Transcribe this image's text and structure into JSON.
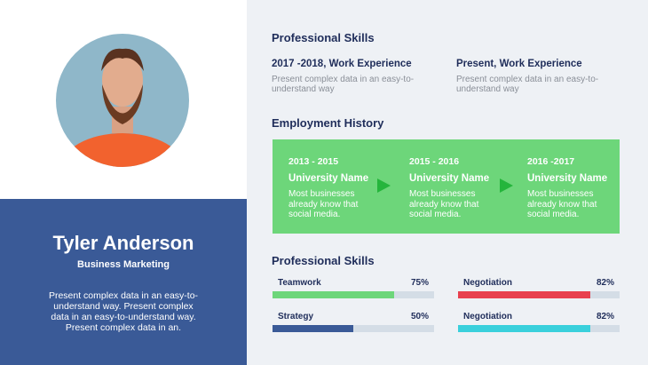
{
  "profile": {
    "name": "Tyler Anderson",
    "role": "Business Marketing",
    "description": "Present complex data in an easy-to-understand way. Present complex data in an easy-to-understand way. Present complex data in an."
  },
  "skills_top": {
    "title": "Professional Skills",
    "items": [
      {
        "heading": "2017 -2018, Work Experience",
        "text": "Present complex data in an easy-to-understand way"
      },
      {
        "heading": "Present, Work Experience",
        "text": "Present complex data in an easy-to-understand way"
      }
    ]
  },
  "employment": {
    "title": "Employment History",
    "items": [
      {
        "years": "2013 - 2015",
        "name": "University Name",
        "text": "Most businesses already know that social media."
      },
      {
        "years": "2015 - 2016",
        "name": "University Name",
        "text": "Most businesses already know that social media."
      },
      {
        "years": "2016 -2017",
        "name": "University Name",
        "text": "Most businesses already know that social media."
      }
    ]
  },
  "skills_bottom": {
    "title": "Professional Skills",
    "items": [
      {
        "name": "Teamwork",
        "value": 75,
        "label": "75%",
        "color": "#6dd67a"
      },
      {
        "name": "Negotiation",
        "value": 82,
        "label": "82%",
        "color": "#e8414f"
      },
      {
        "name": "Strategy",
        "value": 50,
        "label": "50%",
        "color": "#3a5a97"
      },
      {
        "name": "Negotiation",
        "value": 82,
        "label": "82%",
        "color": "#3ad0dc"
      }
    ]
  }
}
